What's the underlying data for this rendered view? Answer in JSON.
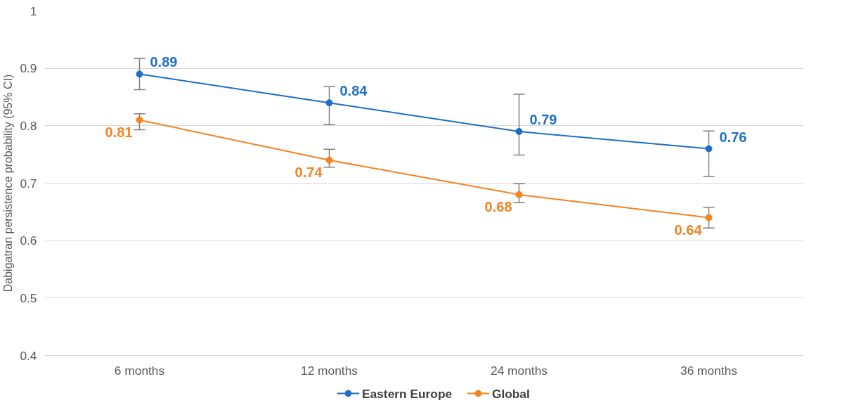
{
  "chart_data": {
    "type": "line",
    "ylabel": "Dabigatran persistence probability (95% CI)",
    "categories": [
      "6 months",
      "12 months",
      "24 months",
      "36 months"
    ],
    "series": [
      {
        "name": "Eastern Europe",
        "color": "#1f6fc5",
        "values": [
          0.89,
          0.84,
          0.79,
          0.76
        ],
        "errors": [
          [
            0.863,
            0.917
          ],
          [
            0.802,
            0.868
          ],
          [
            0.749,
            0.855
          ],
          [
            0.712,
            0.791
          ]
        ]
      },
      {
        "name": "Global",
        "color": "#f58220",
        "values": [
          0.81,
          0.74,
          0.68,
          0.64
        ],
        "errors": [
          [
            0.793,
            0.821
          ],
          [
            0.728,
            0.759
          ],
          [
            0.666,
            0.699
          ],
          [
            0.622,
            0.658
          ]
        ]
      }
    ],
    "ylim": [
      0.4,
      1
    ],
    "yticks": [
      0.4,
      0.5,
      0.6,
      0.7,
      0.8,
      0.9,
      1
    ],
    "grid": "y",
    "legend": "bottom",
    "marker": "circle",
    "line_style": "solid",
    "data_labels": true
  }
}
